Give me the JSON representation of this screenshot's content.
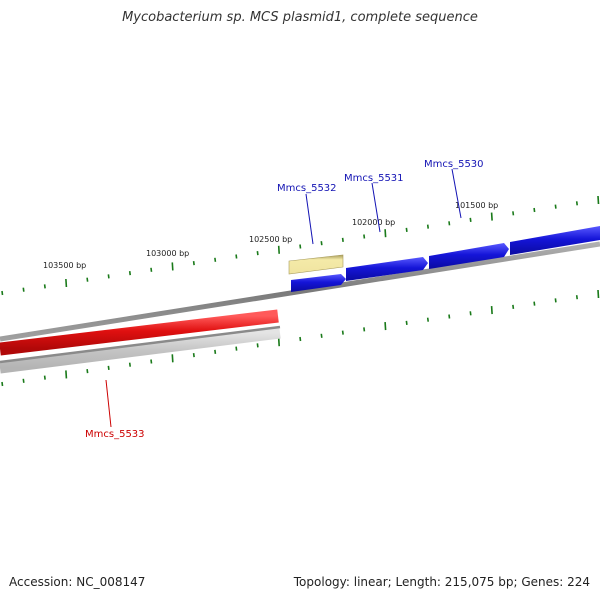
{
  "title": "Mycobacterium sp. MCS plasmid1, complete sequence",
  "footer": {
    "accession": "Accession: NC_008147",
    "summary": "Topology: linear; Length: 215,075 bp; Genes: 224"
  },
  "colors": {
    "backbone": "#808080",
    "tick": "#1a7a1a",
    "forward_gene": "#1515d8",
    "reverse_gene": "#e01010",
    "reverse_shadow": "#c8c8c8",
    "highlight_gene": "#f0e4a0",
    "forward_label": "#1414b4",
    "reverse_label": "#cc0000"
  },
  "ticks": [
    {
      "label": "103500 bp"
    },
    {
      "label": "103000 bp"
    },
    {
      "label": "102500 bp"
    },
    {
      "label": "102000 bp"
    },
    {
      "label": "101500 bp"
    }
  ],
  "genes": [
    {
      "name": "Mmcs_5533",
      "strand": "reverse"
    },
    {
      "name": "Mmcs_5532",
      "strand": "forward"
    },
    {
      "name": "Mmcs_5531",
      "strand": "forward"
    },
    {
      "name": "Mmcs_5530",
      "strand": "forward"
    }
  ]
}
